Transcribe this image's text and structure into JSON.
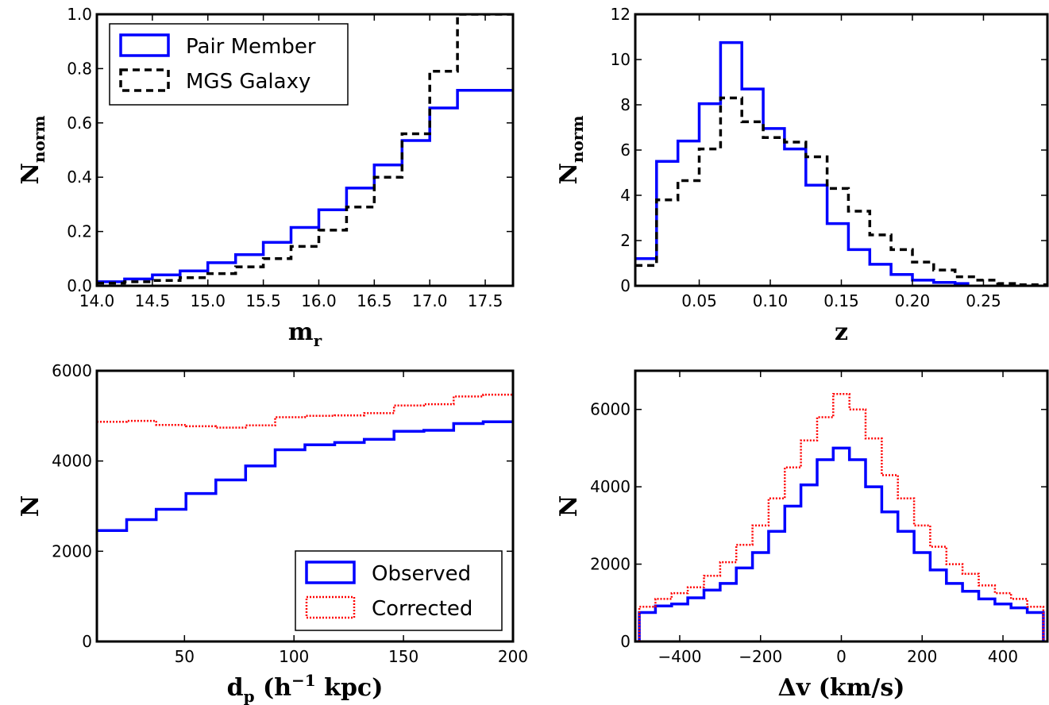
{
  "chart_data": [
    {
      "id": "mr",
      "type": "line",
      "step": true,
      "xlabel": "m",
      "xlabel_sub": "r",
      "ylabel": "N",
      "ylabel_sub": "norm",
      "xlim": [
        14.0,
        17.75
      ],
      "ylim": [
        0.0,
        1.0
      ],
      "xticks": [
        14.0,
        14.5,
        15.0,
        15.5,
        16.0,
        16.5,
        17.0,
        17.5
      ],
      "xtick_labels": [
        "14.0",
        "14.5",
        "15.0",
        "15.5",
        "16.0",
        "16.5",
        "17.0",
        "17.5"
      ],
      "yticks": [
        0.0,
        0.2,
        0.4,
        0.6,
        0.8,
        1.0
      ],
      "ytick_labels": [
        "0.0",
        "0.2",
        "0.4",
        "0.6",
        "0.8",
        "1.0"
      ],
      "legend": {
        "position": "upper-left"
      },
      "bin_edges": [
        14.0,
        14.25,
        14.5,
        14.75,
        15.0,
        15.25,
        15.5,
        15.75,
        16.0,
        16.25,
        16.5,
        16.75,
        17.0,
        17.25,
        17.5,
        17.75
      ],
      "series": [
        {
          "name": "Pair Member",
          "color": "#0000ff",
          "style": "solid",
          "values": [
            0.015,
            0.025,
            0.04,
            0.055,
            0.085,
            0.115,
            0.16,
            0.215,
            0.28,
            0.36,
            0.445,
            0.535,
            0.655,
            0.72,
            0.72
          ]
        },
        {
          "name": "MGS Galaxy",
          "color": "#000000",
          "style": "dashed",
          "values": [
            0.01,
            0.015,
            0.02,
            0.03,
            0.045,
            0.07,
            0.1,
            0.145,
            0.205,
            0.29,
            0.4,
            0.56,
            0.79,
            1.0,
            1.0
          ]
        }
      ]
    },
    {
      "id": "z",
      "type": "line",
      "step": true,
      "xlabel": "z",
      "xlabel_sub": "",
      "ylabel": "N",
      "ylabel_sub": "norm",
      "xlim": [
        0.005,
        0.295
      ],
      "ylim": [
        0,
        12
      ],
      "xticks": [
        0.05,
        0.1,
        0.15,
        0.2,
        0.25
      ],
      "xtick_labels": [
        "0.05",
        "0.10",
        "0.15",
        "0.20",
        "0.25"
      ],
      "yticks": [
        0,
        2,
        4,
        6,
        8,
        10,
        12
      ],
      "ytick_labels": [
        "0",
        "2",
        "4",
        "6",
        "8",
        "10",
        "12"
      ],
      "series": [
        {
          "name": "",
          "color": "#0000ff",
          "style": "solid",
          "bin_edges": [
            0.005,
            0.02,
            0.035,
            0.05,
            0.065,
            0.08,
            0.095,
            0.11,
            0.125,
            0.14,
            0.155,
            0.17,
            0.185,
            0.2,
            0.215,
            0.23,
            0.24
          ],
          "values": [
            1.2,
            5.5,
            6.4,
            8.05,
            10.75,
            8.7,
            6.95,
            6.05,
            4.45,
            2.75,
            1.6,
            0.95,
            0.5,
            0.25,
            0.15,
            0.1
          ]
        },
        {
          "name": "",
          "color": "#000000",
          "style": "dashed",
          "bin_edges": [
            0.005,
            0.02,
            0.035,
            0.05,
            0.065,
            0.08,
            0.095,
            0.11,
            0.125,
            0.14,
            0.155,
            0.17,
            0.185,
            0.2,
            0.215,
            0.23,
            0.245,
            0.26,
            0.275,
            0.295
          ],
          "values": [
            0.9,
            3.8,
            4.65,
            6.05,
            8.3,
            7.25,
            6.55,
            6.35,
            5.7,
            4.3,
            3.3,
            2.25,
            1.6,
            1.05,
            0.7,
            0.4,
            0.25,
            0.1,
            0.05
          ]
        }
      ]
    },
    {
      "id": "dp",
      "type": "line",
      "step": true,
      "xlabel": "d",
      "xlabel_sub": "p",
      "xlabel_rest": "(h",
      "xlabel_sup": "−1",
      "xlabel_tail": "kpc)",
      "ylabel": "N",
      "ylabel_sub": "",
      "xlim": [
        10,
        200
      ],
      "ylim": [
        0,
        6000
      ],
      "xticks": [
        50,
        100,
        150,
        200
      ],
      "xtick_labels": [
        "50",
        "100",
        "150",
        "200"
      ],
      "yticks": [
        0,
        2000,
        4000,
        6000
      ],
      "ytick_labels": [
        "0",
        "2000",
        "4000",
        "6000"
      ],
      "legend": {
        "position": "lower-right"
      },
      "bin_edges": [
        10,
        23.6,
        37.1,
        50.7,
        64.3,
        77.9,
        91.4,
        105,
        118.6,
        132.1,
        145.7,
        159.3,
        172.9,
        186.4,
        200
      ],
      "series": [
        {
          "name": "Observed",
          "color": "#0000ff",
          "style": "solid",
          "values": [
            2460,
            2700,
            2930,
            3280,
            3580,
            3890,
            4250,
            4360,
            4410,
            4480,
            4660,
            4680,
            4830,
            4870
          ]
        },
        {
          "name": "Corrected",
          "color": "#ff0000",
          "style": "dotted",
          "values": [
            4870,
            4890,
            4800,
            4770,
            4740,
            4790,
            4970,
            5000,
            5010,
            5060,
            5230,
            5260,
            5430,
            5470
          ]
        }
      ]
    },
    {
      "id": "dv",
      "type": "line",
      "step": true,
      "xlabel": "Δv",
      "xlabel_sub": "",
      "xlabel_rest": "(km/s)",
      "ylabel": "N",
      "ylabel_sub": "",
      "xlim": [
        -510,
        510
      ],
      "ylim": [
        0,
        7000
      ],
      "xticks": [
        -400,
        -200,
        0,
        200,
        400
      ],
      "xtick_labels": [
        "−400",
        "−200",
        "0",
        "200",
        "400"
      ],
      "yticks": [
        0,
        2000,
        4000,
        6000
      ],
      "ytick_labels": [
        "0",
        "2000",
        "4000",
        "6000"
      ],
      "bin_edges": [
        -500,
        -460,
        -420,
        -380,
        -340,
        -300,
        -260,
        -220,
        -180,
        -140,
        -100,
        -60,
        -20,
        20,
        60,
        100,
        140,
        180,
        220,
        260,
        300,
        340,
        380,
        420,
        460,
        500
      ],
      "series": [
        {
          "name": "",
          "color": "#0000ff",
          "style": "solid",
          "values": [
            750,
            920,
            970,
            1130,
            1330,
            1500,
            1900,
            2300,
            2850,
            3500,
            4050,
            4700,
            5000,
            4700,
            4000,
            3350,
            2850,
            2300,
            1850,
            1500,
            1300,
            1100,
            970,
            870,
            750
          ]
        },
        {
          "name": "",
          "color": "#ff0000",
          "style": "dotted",
          "values": [
            900,
            1100,
            1250,
            1400,
            1700,
            2050,
            2500,
            3000,
            3700,
            4500,
            5200,
            5800,
            6400,
            6000,
            5250,
            4300,
            3700,
            3000,
            2450,
            2000,
            1750,
            1450,
            1250,
            1100,
            900
          ]
        }
      ]
    }
  ]
}
